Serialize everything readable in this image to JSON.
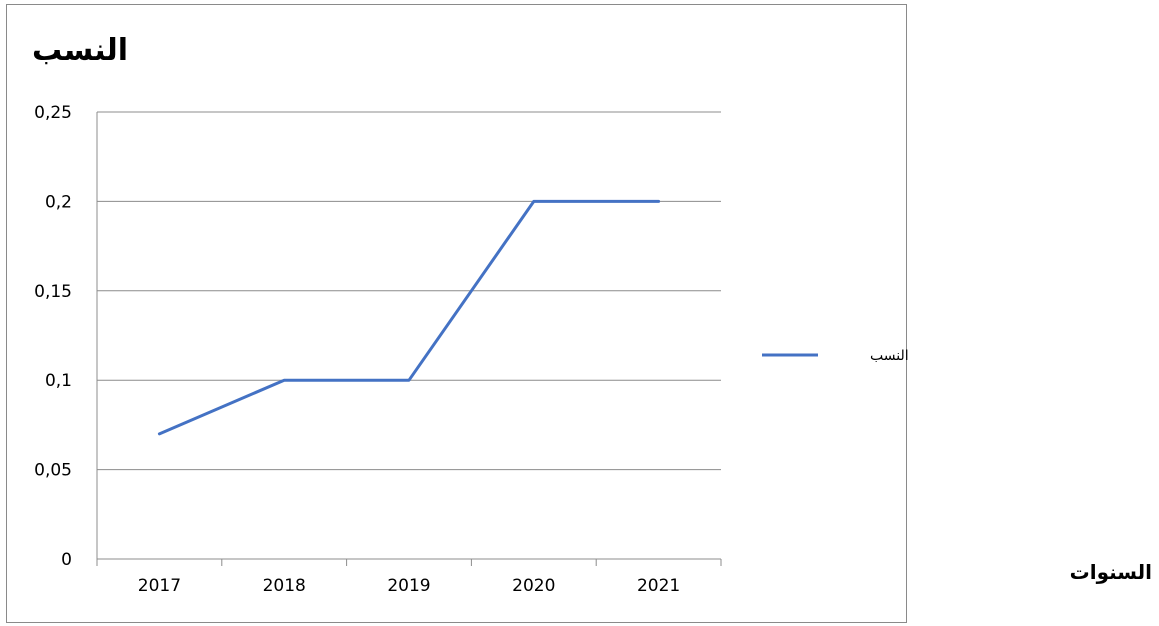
{
  "chart_data": {
    "type": "line",
    "title": "",
    "ylabel": "النسب",
    "xlabel": "السنوات",
    "categories": [
      "2017",
      "2018",
      "2019",
      "2020",
      "2021"
    ],
    "series": [
      {
        "name": "النسب",
        "values": [
          0.07,
          0.1,
          0.1,
          0.2,
          0.2
        ],
        "color": "#4472C4"
      }
    ],
    "ylim": [
      0,
      0.25
    ],
    "yticks": [
      0,
      0.05,
      0.1,
      0.15,
      0.2,
      0.25
    ],
    "ytick_labels": [
      "0",
      "0,05",
      "0,1",
      "0,15",
      "0,2",
      "0,25"
    ],
    "grid": true,
    "legend_position": "right",
    "gridline_color": "#8c8c8c"
  }
}
